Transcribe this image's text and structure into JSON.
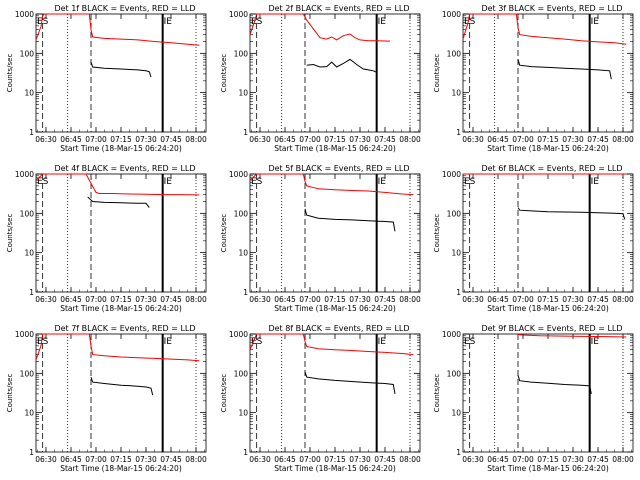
{
  "chart_data": [
    {
      "type": "line",
      "title": "Det 1f  BLACK = Events, RED = LLD",
      "xlabel": "Start Time (18-Mar-15 06:24:20)",
      "ylabel": "Counts/sec",
      "y_scale": "log",
      "ylim": [
        1,
        1000
      ],
      "y_ticks": [
        "1",
        "10",
        "100",
        "1000"
      ],
      "x_ticks": [
        "06:30",
        "06:45",
        "07:00",
        "07:15",
        "07:30",
        "07:45",
        "08:00"
      ],
      "markers": [
        "ES",
        "IE"
      ],
      "series": [
        {
          "color": "#ff0000",
          "points": [
            [
              "06:24",
              220
            ],
            [
              "06:27",
              480
            ],
            [
              "06:28",
              900
            ],
            [
              "06:29",
              1000
            ],
            [
              "06:56",
              1000
            ],
            [
              "06:57",
              400
            ],
            [
              "06:58",
              260
            ],
            [
              "07:05",
              240
            ],
            [
              "07:15",
              230
            ],
            [
              "07:25",
              220
            ],
            [
              "07:35",
              200
            ],
            [
              "07:45",
              185
            ],
            [
              "07:55",
              170
            ],
            [
              "08:02",
              160
            ]
          ]
        },
        {
          "color": "#000000",
          "points": [
            [
              "06:57",
              60
            ],
            [
              "06:58",
              45
            ],
            [
              "07:05",
              42
            ],
            [
              "07:15",
              40
            ],
            [
              "07:25",
              38
            ],
            [
              "07:30",
              36
            ],
            [
              "07:32",
              34
            ],
            [
              "07:33",
              25
            ]
          ]
        }
      ]
    },
    {
      "type": "line",
      "title": "Det 2f  BLACK = Events, RED = LLD",
      "xlabel": "Start Time (18-Mar-15 06:24:20)",
      "ylabel": "Counts/sec",
      "y_scale": "log",
      "ylim": [
        1,
        1000
      ],
      "y_ticks": [
        "1",
        "10",
        "100",
        "1000"
      ],
      "x_ticks": [
        "06:30",
        "06:45",
        "07:00",
        "07:15",
        "07:30",
        "07:45",
        "08:00"
      ],
      "markers": [
        "ES",
        "IE"
      ],
      "series": [
        {
          "color": "#ff0000",
          "points": [
            [
              "06:24",
              300
            ],
            [
              "06:27",
              700
            ],
            [
              "06:28",
              1000
            ],
            [
              "06:56",
              1000
            ],
            [
              "06:58",
              700
            ],
            [
              "07:02",
              420
            ],
            [
              "07:06",
              250
            ],
            [
              "07:10",
              230
            ],
            [
              "07:13",
              260
            ],
            [
              "07:16",
              220
            ],
            [
              "07:20",
              280
            ],
            [
              "07:24",
              310
            ],
            [
              "07:27",
              250
            ],
            [
              "07:30",
              220
            ],
            [
              "07:35",
              210
            ],
            [
              "07:40",
              210
            ],
            [
              "07:48",
              205
            ]
          ]
        },
        {
          "color": "#000000",
          "points": [
            [
              "06:58",
              50
            ],
            [
              "07:02",
              52
            ],
            [
              "07:06",
              45
            ],
            [
              "07:10",
              46
            ],
            [
              "07:13",
              60
            ],
            [
              "07:16",
              45
            ],
            [
              "07:20",
              55
            ],
            [
              "07:24",
              70
            ],
            [
              "07:28",
              52
            ],
            [
              "07:32",
              40
            ],
            [
              "07:35",
              38
            ],
            [
              "07:38",
              36
            ],
            [
              "07:40",
              33
            ]
          ]
        }
      ]
    },
    {
      "type": "line",
      "title": "Det 3f  BLACK = Events, RED = LLD",
      "xlabel": "Start Time (18-Mar-15 06:24:20)",
      "ylabel": "Counts/sec",
      "y_scale": "log",
      "ylim": [
        1,
        1000
      ],
      "y_ticks": [
        "1",
        "10",
        "100",
        "1000"
      ],
      "x_ticks": [
        "06:30",
        "06:45",
        "07:00",
        "07:15",
        "07:30",
        "07:45",
        "08:00"
      ],
      "markers": [
        "ES",
        "IE"
      ],
      "series": [
        {
          "color": "#ff0000",
          "points": [
            [
              "06:24",
              230
            ],
            [
              "06:27",
              600
            ],
            [
              "06:28",
              1000
            ],
            [
              "06:56",
              1000
            ],
            [
              "06:57",
              450
            ],
            [
              "06:58",
              300
            ],
            [
              "07:05",
              270
            ],
            [
              "07:15",
              250
            ],
            [
              "07:25",
              230
            ],
            [
              "07:35",
              210
            ],
            [
              "07:45",
              195
            ],
            [
              "07:55",
              185
            ],
            [
              "08:02",
              170
            ]
          ]
        },
        {
          "color": "#000000",
          "points": [
            [
              "06:57",
              70
            ],
            [
              "06:58",
              50
            ],
            [
              "07:05",
              46
            ],
            [
              "07:15",
              44
            ],
            [
              "07:25",
              42
            ],
            [
              "07:35",
              40
            ],
            [
              "07:45",
              38
            ],
            [
              "07:52",
              36
            ],
            [
              "07:53",
              22
            ]
          ]
        }
      ]
    },
    {
      "type": "line",
      "title": "Det 4f  BLACK = Events, RED = LLD",
      "xlabel": "Start Time (18-Mar-15 06:24:20)",
      "ylabel": "Counts/sec",
      "y_scale": "log",
      "ylim": [
        1,
        1000
      ],
      "y_ticks": [
        "1",
        "10",
        "100",
        "1000"
      ],
      "x_ticks": [
        "06:30",
        "06:45",
        "07:00",
        "07:15",
        "07:30",
        "07:45",
        "08:00"
      ],
      "markers": [
        "ES",
        "IE"
      ],
      "series": [
        {
          "color": "#ff0000",
          "points": [
            [
              "06:24",
              700
            ],
            [
              "06:27",
              900
            ],
            [
              "06:28",
              1000
            ],
            [
              "06:54",
              1000
            ],
            [
              "06:56",
              700
            ],
            [
              "06:58",
              480
            ],
            [
              "07:00",
              340
            ],
            [
              "07:02",
              320
            ],
            [
              "07:10",
              320
            ],
            [
              "07:20",
              310
            ],
            [
              "07:30",
              305
            ],
            [
              "07:40",
              300
            ],
            [
              "07:50",
              300
            ],
            [
              "08:02",
              295
            ]
          ]
        },
        {
          "color": "#000000",
          "points": [
            [
              "06:55",
              260
            ],
            [
              "06:58",
              200
            ],
            [
              "07:05",
              190
            ],
            [
              "07:15",
              185
            ],
            [
              "07:25",
              180
            ],
            [
              "07:30",
              180
            ],
            [
              "07:32",
              140
            ]
          ]
        }
      ]
    },
    {
      "type": "line",
      "title": "Det 5f  BLACK = Events, RED = LLD",
      "xlabel": "Start Time (18-Mar-15 06:24:20)",
      "ylabel": "Counts/sec",
      "y_scale": "log",
      "ylim": [
        1,
        1000
      ],
      "y_ticks": [
        "1",
        "10",
        "100",
        "1000"
      ],
      "x_ticks": [
        "06:30",
        "06:45",
        "07:00",
        "07:15",
        "07:30",
        "07:45",
        "08:00"
      ],
      "markers": [
        "ES",
        "IE"
      ],
      "series": [
        {
          "color": "#ff0000",
          "points": [
            [
              "06:24",
              700
            ],
            [
              "06:28",
              1000
            ],
            [
              "06:56",
              1000
            ],
            [
              "06:57",
              650
            ],
            [
              "06:58",
              500
            ],
            [
              "07:05",
              420
            ],
            [
              "07:15",
              400
            ],
            [
              "07:25",
              380
            ],
            [
              "07:35",
              370
            ],
            [
              "07:45",
              340
            ],
            [
              "07:55",
              310
            ],
            [
              "08:02",
              300
            ]
          ]
        },
        {
          "color": "#000000",
          "points": [
            [
              "06:57",
              130
            ],
            [
              "06:58",
              90
            ],
            [
              "07:05",
              75
            ],
            [
              "07:15",
              70
            ],
            [
              "07:25",
              68
            ],
            [
              "07:35",
              65
            ],
            [
              "07:45",
              62
            ],
            [
              "07:50",
              60
            ],
            [
              "07:51",
              35
            ]
          ]
        }
      ]
    },
    {
      "type": "line",
      "title": "Det 6f  BLACK = Events, RED = LLD",
      "xlabel": "Start Time (18-Mar-15 06:24:20)",
      "ylabel": "Counts/sec",
      "y_scale": "log",
      "ylim": [
        1,
        1000
      ],
      "y_ticks": [
        "1",
        "10",
        "100",
        "1000"
      ],
      "x_ticks": [
        "06:30",
        "06:45",
        "07:00",
        "07:15",
        "07:30",
        "07:45",
        "08:00"
      ],
      "markers": [
        "ES",
        "IE"
      ],
      "series": [
        {
          "color": "#ff0000",
          "points": [
            [
              "06:24",
              1000
            ],
            [
              "08:02",
              1000
            ]
          ]
        },
        {
          "color": "#000000",
          "points": [
            [
              "06:57",
              140
            ],
            [
              "06:58",
              120
            ],
            [
              "07:05",
              115
            ],
            [
              "07:15",
              110
            ],
            [
              "07:25",
              108
            ],
            [
              "07:35",
              106
            ],
            [
              "07:45",
              104
            ],
            [
              "07:55",
              100
            ],
            [
              "08:00",
              98
            ],
            [
              "08:01",
              70
            ]
          ]
        }
      ]
    },
    {
      "type": "line",
      "title": "Det 7f  BLACK = Events, RED = LLD",
      "xlabel": "Start Time (18-Mar-15 06:24:20)",
      "ylabel": "Counts/sec",
      "y_scale": "log",
      "ylim": [
        1,
        1000
      ],
      "y_ticks": [
        "1",
        "10",
        "100",
        "1000"
      ],
      "x_ticks": [
        "06:30",
        "06:45",
        "07:00",
        "07:15",
        "07:30",
        "07:45",
        "08:00"
      ],
      "markers": [
        "ES",
        "IE"
      ],
      "series": [
        {
          "color": "#ff0000",
          "points": [
            [
              "06:24",
              220
            ],
            [
              "06:27",
              500
            ],
            [
              "06:28",
              1000
            ],
            [
              "06:56",
              1000
            ],
            [
              "06:57",
              500
            ],
            [
              "06:58",
              300
            ],
            [
              "07:05",
              280
            ],
            [
              "07:15",
              260
            ],
            [
              "07:25",
              250
            ],
            [
              "07:35",
              240
            ],
            [
              "07:45",
              230
            ],
            [
              "07:55",
              220
            ],
            [
              "08:02",
              210
            ]
          ]
        },
        {
          "color": "#000000",
          "points": [
            [
              "06:57",
              80
            ],
            [
              "06:58",
              60
            ],
            [
              "07:05",
              55
            ],
            [
              "07:15",
              50
            ],
            [
              "07:25",
              47
            ],
            [
              "07:30",
              45
            ],
            [
              "07:33",
              42
            ],
            [
              "07:34",
              28
            ]
          ]
        }
      ]
    },
    {
      "type": "line",
      "title": "Det 8f  BLACK = Events, RED = LLD",
      "xlabel": "Start Time (18-Mar-15 06:24:20)",
      "ylabel": "Counts/sec",
      "y_scale": "log",
      "ylim": [
        1,
        1000
      ],
      "y_ticks": [
        "1",
        "10",
        "100",
        "1000"
      ],
      "x_ticks": [
        "06:30",
        "06:45",
        "07:00",
        "07:15",
        "07:30",
        "07:45",
        "08:00"
      ],
      "markers": [
        "ES",
        "IE"
      ],
      "series": [
        {
          "color": "#ff0000",
          "points": [
            [
              "06:24",
              400
            ],
            [
              "06:27",
              800
            ],
            [
              "06:28",
              1000
            ],
            [
              "06:56",
              1000
            ],
            [
              "06:57",
              650
            ],
            [
              "06:58",
              480
            ],
            [
              "07:05",
              420
            ],
            [
              "07:15",
              400
            ],
            [
              "07:25",
              380
            ],
            [
              "07:35",
              360
            ],
            [
              "07:45",
              340
            ],
            [
              "07:55",
              320
            ],
            [
              "08:02",
              300
            ]
          ]
        },
        {
          "color": "#000000",
          "points": [
            [
              "06:57",
              110
            ],
            [
              "06:58",
              80
            ],
            [
              "07:05",
              72
            ],
            [
              "07:15",
              66
            ],
            [
              "07:25",
              62
            ],
            [
              "07:35",
              58
            ],
            [
              "07:45",
              55
            ],
            [
              "07:50",
              52
            ],
            [
              "07:51",
              30
            ]
          ]
        }
      ]
    },
    {
      "type": "line",
      "title": "Det 9f  BLACK = Events, RED = LLD",
      "xlabel": "Start Time (18-Mar-15 06:24:20)",
      "ylabel": "Counts/sec",
      "y_scale": "log",
      "ylim": [
        1,
        1000
      ],
      "y_ticks": [
        "1",
        "10",
        "100",
        "1000"
      ],
      "x_ticks": [
        "06:30",
        "06:45",
        "07:00",
        "07:15",
        "07:30",
        "07:45",
        "08:00"
      ],
      "markers": [
        "ES",
        "IE"
      ],
      "series": [
        {
          "color": "#ff0000",
          "points": [
            [
              "06:57",
              1000
            ],
            [
              "06:58",
              950
            ],
            [
              "07:10",
              900
            ],
            [
              "07:30",
              880
            ],
            [
              "07:50",
              860
            ],
            [
              "08:02",
              840
            ]
          ]
        },
        {
          "color": "#000000",
          "points": [
            [
              "06:57",
              90
            ],
            [
              "06:58",
              65
            ],
            [
              "07:05",
              60
            ],
            [
              "07:15",
              56
            ],
            [
              "07:25",
              52
            ],
            [
              "07:35",
              50
            ],
            [
              "07:40",
              48
            ],
            [
              "07:41",
              30
            ]
          ]
        }
      ]
    }
  ]
}
